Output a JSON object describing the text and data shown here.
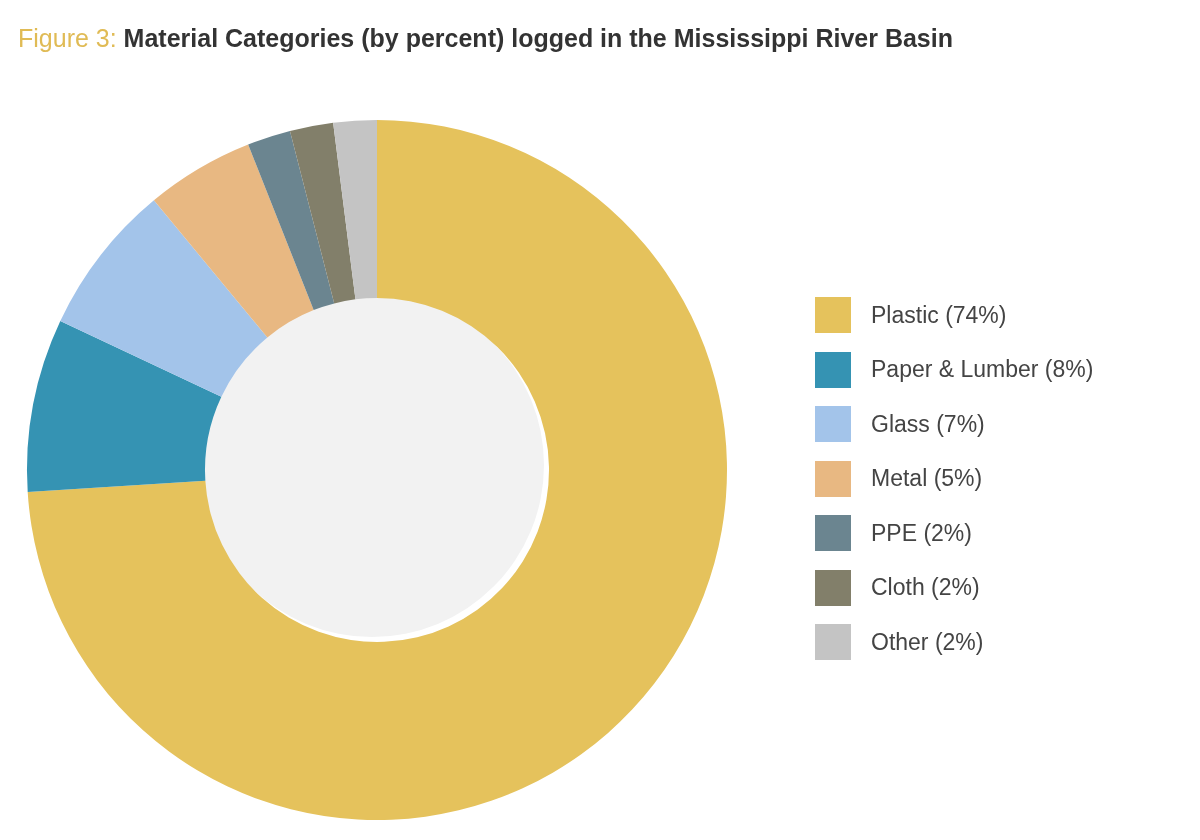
{
  "chart_data": {
    "type": "donut",
    "title": "Figure 3: Material Categories (by percent) logged in the Mississippi River Basin",
    "categories": [
      "Plastic (74%)",
      "Paper & Lumber (8%)",
      "Glass (7%)",
      "Metal (5%)",
      "PPE (2%)",
      "Cloth (2%)",
      "Other (2%)"
    ],
    "values": [
      74,
      8,
      7,
      5,
      2,
      2,
      2
    ],
    "colors": [
      "#e5c25c",
      "#3593b3",
      "#a3c4ea",
      "#e8b882",
      "#6b8590",
      "#827f6a",
      "#c4c4c4"
    ],
    "legend": "right"
  }
}
